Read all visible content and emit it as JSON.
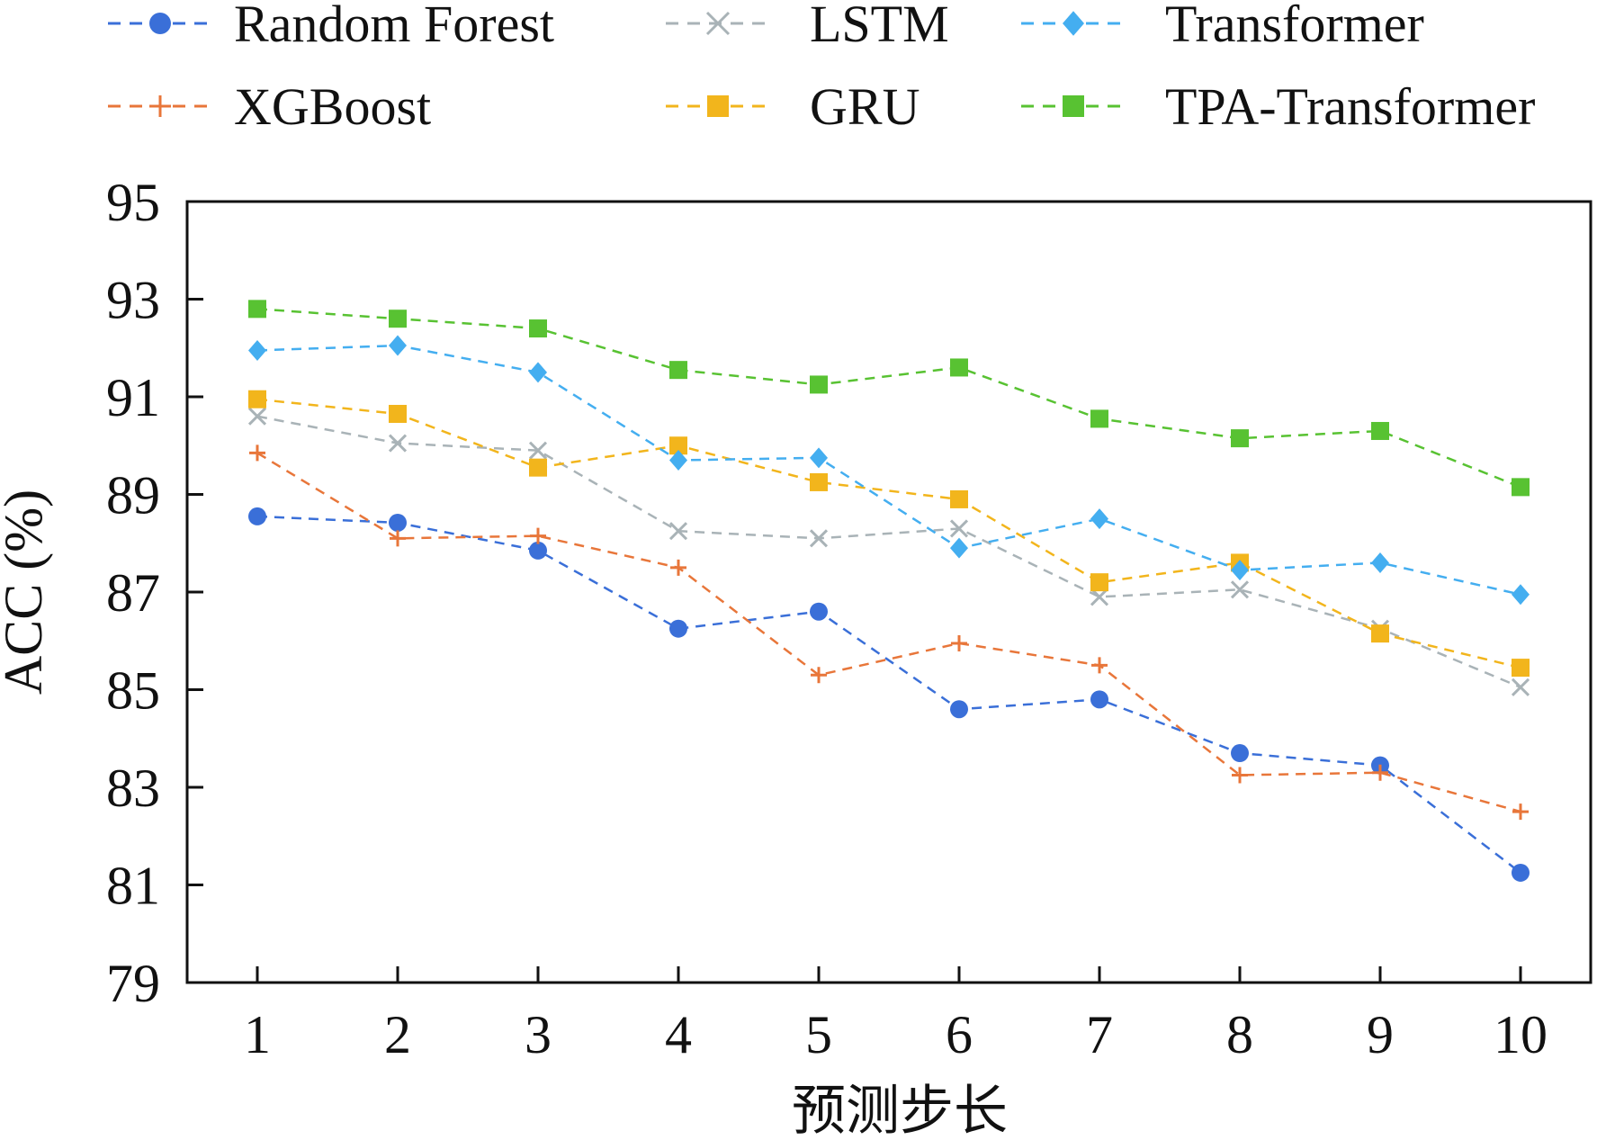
{
  "chart_data": {
    "type": "line",
    "title": "",
    "xlabel": "预测步长",
    "ylabel": "ACC (%)",
    "x": [
      1,
      2,
      3,
      4,
      5,
      6,
      7,
      8,
      9,
      10
    ],
    "xticks": [
      "1",
      "2",
      "3",
      "4",
      "5",
      "6",
      "7",
      "8",
      "9",
      "10"
    ],
    "yticks": [
      "79",
      "81",
      "83",
      "85",
      "87",
      "89",
      "91",
      "93",
      "95"
    ],
    "ylim": [
      79,
      95
    ],
    "xlim": [
      0.5,
      10.5
    ],
    "grid": false,
    "legend_position": "top",
    "series": [
      {
        "name": "Random Forest",
        "color": "#3a6fd8",
        "marker": "circle",
        "values": [
          88.55,
          88.42,
          87.85,
          86.25,
          86.6,
          84.6,
          84.8,
          83.7,
          83.45,
          81.25
        ]
      },
      {
        "name": "XGBoost",
        "color": "#e8763a",
        "marker": "plus",
        "values": [
          89.85,
          88.1,
          88.15,
          87.5,
          85.3,
          85.95,
          85.5,
          83.25,
          83.3,
          82.5
        ]
      },
      {
        "name": "LSTM",
        "color": "#a9b3b7",
        "marker": "x",
        "values": [
          90.6,
          90.05,
          89.9,
          88.25,
          88.1,
          88.3,
          86.9,
          87.05,
          86.25,
          85.05
        ]
      },
      {
        "name": "GRU",
        "color": "#f2b51c",
        "marker": "square",
        "values": [
          90.95,
          90.65,
          89.55,
          90.0,
          89.25,
          88.9,
          87.2,
          87.6,
          86.15,
          85.45
        ]
      },
      {
        "name": "Transformer",
        "color": "#44aef0",
        "marker": "diamond",
        "values": [
          91.95,
          92.05,
          91.5,
          89.7,
          89.75,
          87.9,
          88.5,
          87.45,
          87.6,
          86.95
        ]
      },
      {
        "name": "TPA-Transformer",
        "color": "#58c232",
        "marker": "square",
        "values": [
          92.8,
          92.6,
          92.4,
          91.55,
          91.25,
          91.6,
          90.55,
          90.15,
          90.3,
          89.15
        ]
      }
    ]
  },
  "legend": [
    {
      "label": "Random Forest",
      "series": 0
    },
    {
      "label": "LSTM",
      "series": 2
    },
    {
      "label": "Transformer",
      "series": 4
    },
    {
      "label": "XGBoost",
      "series": 1
    },
    {
      "label": "GRU",
      "series": 3
    },
    {
      "label": "TPA-Transformer",
      "series": 5
    }
  ]
}
